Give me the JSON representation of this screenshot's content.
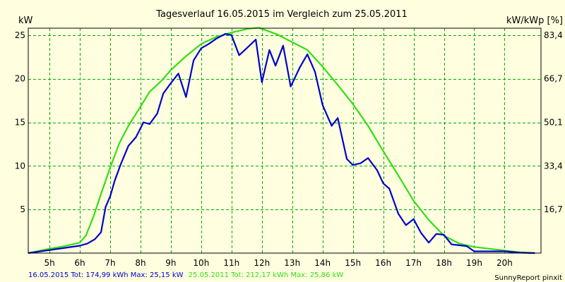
{
  "chart_data": {
    "type": "line",
    "title": "Tagesverlauf 16.05.2015 im Vergleich zum 25.05.2011",
    "ylabel": "kW",
    "ylabel_right": "kW/kWp [%]",
    "xlim": [
      4.3,
      21.2
    ],
    "ylim": [
      0,
      25.8
    ],
    "x_ticks": [
      {
        "x": 5,
        "label": "5h"
      },
      {
        "x": 6,
        "label": "6h"
      },
      {
        "x": 7,
        "label": "7h"
      },
      {
        "x": 8,
        "label": "8h"
      },
      {
        "x": 9,
        "label": "9h"
      },
      {
        "x": 10,
        "label": "10h"
      },
      {
        "x": 11,
        "label": "11h"
      },
      {
        "x": 12,
        "label": "12h"
      },
      {
        "x": 13,
        "label": "13h"
      },
      {
        "x": 14,
        "label": "14h"
      },
      {
        "x": 15,
        "label": "15h"
      },
      {
        "x": 16,
        "label": "16h"
      },
      {
        "x": 17,
        "label": "17h"
      },
      {
        "x": 18,
        "label": "18h"
      },
      {
        "x": 19,
        "label": "19h"
      },
      {
        "x": 20,
        "label": "20h"
      }
    ],
    "y_ticks": [
      {
        "y": 5,
        "label": "5"
      },
      {
        "y": 10,
        "label": "10"
      },
      {
        "y": 15,
        "label": "15"
      },
      {
        "y": 20,
        "label": "20"
      },
      {
        "y": 25,
        "label": "25"
      }
    ],
    "y_right_ticks": [
      {
        "y": 5,
        "label": "16,7"
      },
      {
        "y": 10,
        "label": "33,4"
      },
      {
        "y": 15,
        "label": "50,1"
      },
      {
        "y": 20,
        "label": "66,7"
      },
      {
        "y": 25,
        "label": "83,4"
      }
    ],
    "grid": true,
    "series": [
      {
        "color": "#0000cc",
        "points": [
          [
            4.3,
            0.0
          ],
          [
            5.0,
            0.35
          ],
          [
            5.5,
            0.6
          ],
          [
            6.0,
            0.85
          ],
          [
            6.25,
            1.1
          ],
          [
            6.5,
            1.6
          ],
          [
            6.7,
            2.4
          ],
          [
            6.85,
            5.3
          ],
          [
            7.0,
            6.5
          ],
          [
            7.15,
            8.3
          ],
          [
            7.35,
            10.2
          ],
          [
            7.6,
            12.3
          ],
          [
            7.85,
            13.3
          ],
          [
            8.1,
            15.0
          ],
          [
            8.3,
            14.8
          ],
          [
            8.55,
            16.0
          ],
          [
            8.75,
            18.3
          ],
          [
            9.0,
            19.5
          ],
          [
            9.25,
            20.6
          ],
          [
            9.5,
            17.9
          ],
          [
            9.75,
            22.1
          ],
          [
            10.0,
            23.5
          ],
          [
            10.25,
            24.0
          ],
          [
            10.5,
            24.6
          ],
          [
            10.8,
            25.15
          ],
          [
            11.0,
            25.0
          ],
          [
            11.25,
            22.7
          ],
          [
            11.5,
            23.5
          ],
          [
            11.8,
            24.5
          ],
          [
            12.0,
            19.6
          ],
          [
            12.25,
            23.3
          ],
          [
            12.45,
            21.5
          ],
          [
            12.7,
            23.8
          ],
          [
            12.95,
            19.1
          ],
          [
            13.25,
            21.3
          ],
          [
            13.5,
            22.8
          ],
          [
            13.75,
            20.8
          ],
          [
            14.0,
            17.0
          ],
          [
            14.3,
            14.6
          ],
          [
            14.5,
            15.5
          ],
          [
            14.8,
            10.8
          ],
          [
            15.0,
            10.1
          ],
          [
            15.25,
            10.3
          ],
          [
            15.5,
            10.9
          ],
          [
            15.8,
            9.5
          ],
          [
            16.0,
            8.0
          ],
          [
            16.2,
            7.4
          ],
          [
            16.5,
            4.5
          ],
          [
            16.75,
            3.2
          ],
          [
            17.0,
            3.9
          ],
          [
            17.25,
            2.3
          ],
          [
            17.5,
            1.2
          ],
          [
            17.75,
            2.2
          ],
          [
            18.0,
            2.1
          ],
          [
            18.25,
            1.0
          ],
          [
            18.75,
            0.8
          ],
          [
            19.0,
            0.2
          ],
          [
            20.0,
            0.2
          ],
          [
            20.5,
            0.05
          ],
          [
            21.0,
            0.0
          ]
        ]
      },
      {
        "color": "#33dd11",
        "points": [
          [
            4.3,
            0.0
          ],
          [
            5.0,
            0.5
          ],
          [
            5.5,
            0.8
          ],
          [
            6.0,
            1.2
          ],
          [
            6.2,
            2.0
          ],
          [
            6.45,
            4.2
          ],
          [
            6.7,
            6.8
          ],
          [
            7.0,
            9.8
          ],
          [
            7.3,
            12.6
          ],
          [
            7.6,
            14.6
          ],
          [
            8.0,
            16.8
          ],
          [
            8.3,
            18.5
          ],
          [
            8.7,
            19.8
          ],
          [
            9.0,
            21.0
          ],
          [
            9.5,
            22.6
          ],
          [
            10.0,
            24.0
          ],
          [
            10.5,
            24.8
          ],
          [
            11.0,
            25.3
          ],
          [
            11.5,
            25.7
          ],
          [
            11.9,
            25.86
          ],
          [
            12.5,
            25.1
          ],
          [
            13.0,
            24.2
          ],
          [
            13.5,
            23.3
          ],
          [
            14.0,
            21.4
          ],
          [
            14.5,
            19.3
          ],
          [
            15.0,
            17.1
          ],
          [
            15.5,
            14.6
          ],
          [
            16.0,
            11.7
          ],
          [
            16.5,
            8.9
          ],
          [
            17.0,
            6.0
          ],
          [
            17.5,
            3.8
          ],
          [
            18.0,
            2.0
          ],
          [
            18.5,
            1.1
          ],
          [
            19.0,
            0.7
          ],
          [
            19.5,
            0.5
          ],
          [
            20.0,
            0.3
          ],
          [
            20.5,
            0.1
          ],
          [
            21.0,
            0.0
          ]
        ]
      }
    ]
  },
  "footer": {
    "series_a_color": "#0000cc",
    "series_a_text": "16.05.2015 Tot: 174,99 kWh Max: 25,15 kW",
    "series_b_color": "#33dd11",
    "series_b_text": "25.05.2011 Tot: 212,17 kWh Max: 25,86 kW",
    "credit": "SunnyReport pinxit"
  },
  "colors": {
    "background": "#ffffe0",
    "grid": "#00aa00"
  }
}
